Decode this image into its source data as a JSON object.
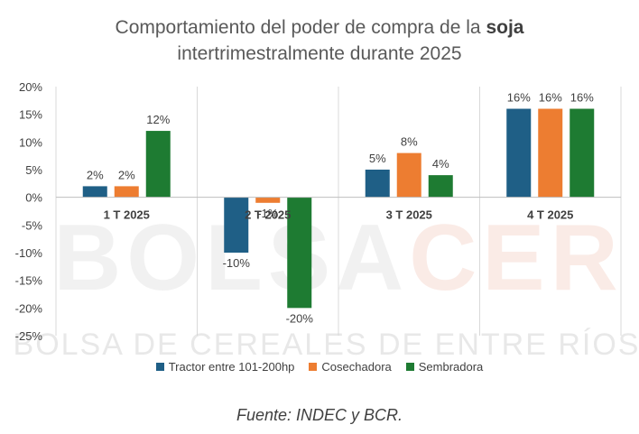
{
  "title": {
    "line1_prefix": "Comportamiento del poder de compra de la ",
    "line1_bold": "soja",
    "line2": "intertrimestralmente  durante 2025"
  },
  "watermark": {
    "big": "BOLSACER",
    "big_part1": "BOLSA",
    "big_part2": "CER",
    "small": "BOLSA DE CEREALES DE ENTRE RÍOS"
  },
  "source": "Fuente: INDEC y BCR.",
  "colors": {
    "series1": "#1f5f86",
    "series2": "#ed7d31",
    "series3": "#1e7b32"
  },
  "chart_data": {
    "type": "bar",
    "categories": [
      "1 T 2025",
      "2 T 2025",
      "3 T 2025",
      "4 T 2025"
    ],
    "series": [
      {
        "name": "Tractor entre 101-200hp",
        "values": [
          2,
          -10,
          5,
          16
        ],
        "labels": [
          "2%",
          "-10%",
          "5%",
          "16%"
        ]
      },
      {
        "name": "Cosechadora",
        "values": [
          2,
          -1,
          8,
          16
        ],
        "labels": [
          "2%",
          "-1%",
          "8%",
          "16%"
        ]
      },
      {
        "name": "Sembradora",
        "values": [
          12,
          -20,
          4,
          16
        ],
        "labels": [
          "12%",
          "-20%",
          "4%",
          "16%"
        ]
      }
    ],
    "ylim": [
      -25,
      20
    ],
    "yticks": [
      20,
      15,
      10,
      5,
      0,
      -5,
      -10,
      -15,
      -20,
      -25
    ],
    "ytick_labels": [
      "20%",
      "15%",
      "10%",
      "5%",
      "0%",
      "-5%",
      "-10%",
      "-15%",
      "-20%",
      "-25%"
    ],
    "legend_position": "bottom",
    "grid": "vertical"
  }
}
